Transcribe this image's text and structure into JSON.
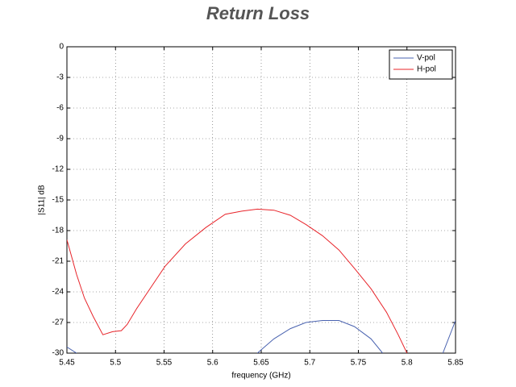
{
  "chart_data": {
    "type": "line",
    "title": "Return Loss",
    "xlabel": "frequency (GHz)",
    "ylabel": "|S11| dB",
    "xlim": [
      5.45,
      5.85
    ],
    "xticks": [
      5.45,
      5.5,
      5.55,
      5.6,
      5.65,
      5.7,
      5.75,
      5.8,
      5.85
    ],
    "ylim": [
      -30,
      0
    ],
    "yticks": [
      0,
      -3,
      -6,
      -9,
      -12,
      -15,
      -18,
      -21,
      -24,
      -27,
      -30
    ],
    "grid": true,
    "legend": "northeast",
    "series": [
      {
        "name": "V-pol",
        "color": "#4a63b0",
        "x": [
          5.45,
          5.46,
          null,
          5.646,
          5.663,
          5.68,
          5.696,
          5.713,
          5.73,
          5.746,
          5.763,
          5.775,
          null,
          5.837,
          5.85
        ],
        "values": [
          -29.4,
          -30,
          null,
          -30,
          -28.6,
          -27.6,
          -27,
          -26.8,
          -26.8,
          -27.4,
          -28.6,
          -30,
          null,
          -30,
          -26.8
        ]
      },
      {
        "name": "H-pol",
        "color": "#e8242a",
        "x": [
          5.45,
          5.46,
          5.468,
          5.477,
          5.487,
          5.497,
          5.506,
          5.512,
          5.522,
          5.539,
          5.551,
          5.572,
          5.593,
          5.613,
          5.63,
          5.646,
          5.663,
          5.68,
          5.696,
          5.713,
          5.73,
          5.746,
          5.763,
          5.779,
          5.791,
          5.8
        ],
        "values": [
          -18.9,
          -22.3,
          -24.6,
          -26.4,
          -28.2,
          -27.9,
          -27.8,
          -27.2,
          -25.6,
          -23.2,
          -21.5,
          -19.3,
          -17.7,
          -16.4,
          -16.1,
          -15.9,
          -16,
          -16.5,
          -17.4,
          -18.5,
          -19.9,
          -21.7,
          -23.7,
          -26,
          -28.2,
          -30
        ]
      }
    ]
  }
}
